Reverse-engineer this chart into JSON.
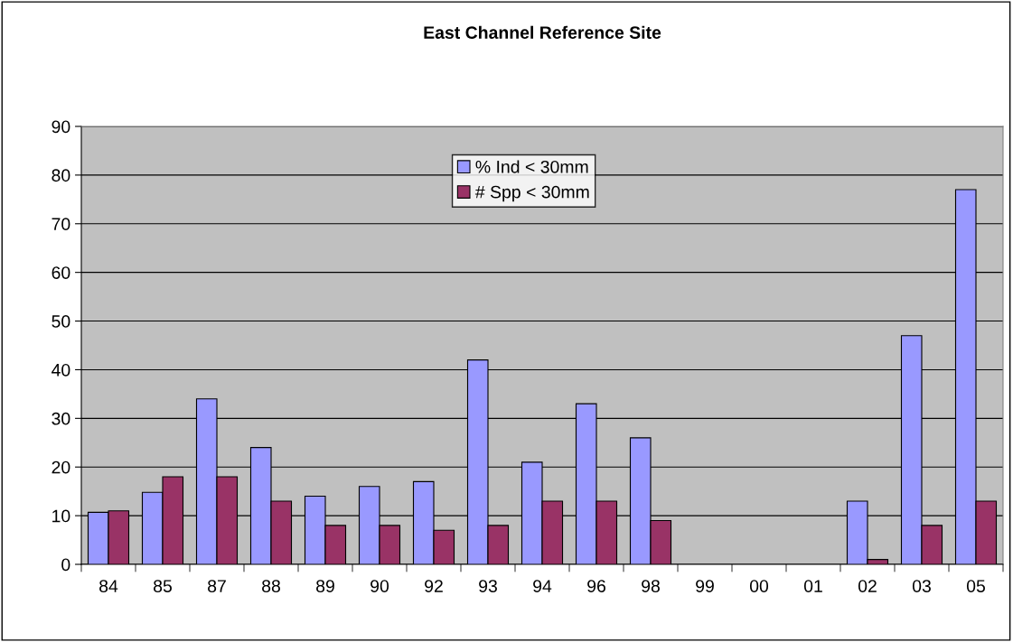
{
  "chart_data": {
    "type": "bar",
    "title": "East Channel Reference Site",
    "categories": [
      "84",
      "85",
      "87",
      "88",
      "89",
      "90",
      "92",
      "93",
      "94",
      "96",
      "98",
      "99",
      "00",
      "01",
      "02",
      "03",
      "05"
    ],
    "series": [
      {
        "name": "% Ind < 30mm",
        "color": "#9999ff",
        "values": [
          10.7,
          14.8,
          34,
          24,
          14,
          16,
          17,
          42,
          21,
          33,
          26,
          null,
          null,
          null,
          13,
          47,
          77
        ]
      },
      {
        "name": "# Spp < 30mm",
        "color": "#993366",
        "values": [
          11,
          18,
          18,
          13,
          8,
          8,
          7,
          8,
          13,
          13,
          9,
          null,
          null,
          null,
          1,
          8,
          13
        ]
      }
    ],
    "ylim": [
      0,
      90
    ],
    "yticks": [
      0,
      10,
      20,
      30,
      40,
      50,
      60,
      70,
      80,
      90
    ],
    "grid": "y",
    "legend": "top"
  }
}
